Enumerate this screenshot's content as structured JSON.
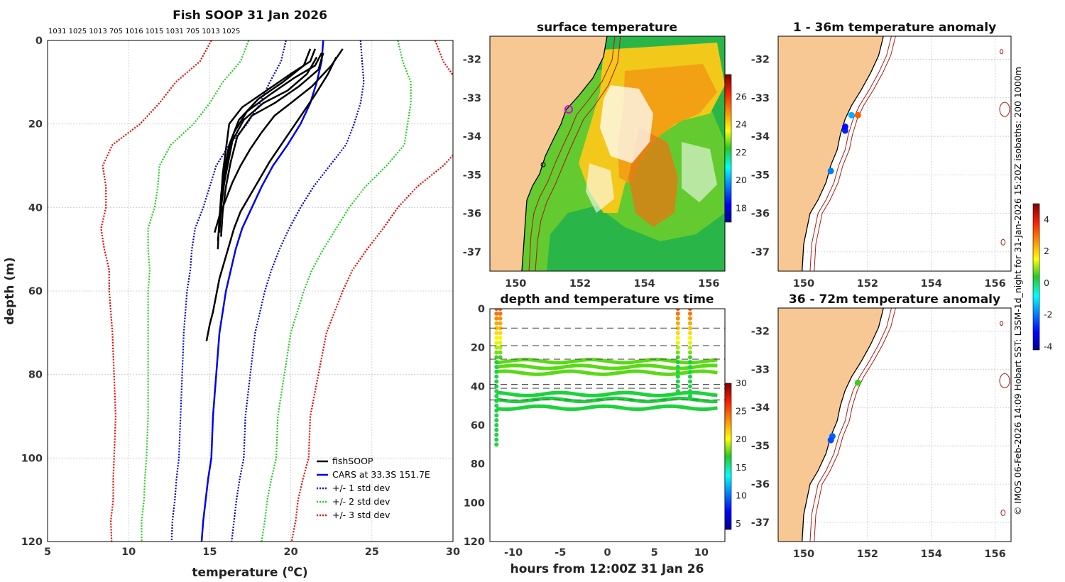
{
  "chart_data": [
    {
      "id": "profile",
      "type": "line",
      "title": "Fish SOOP 31 Jan 2026",
      "top_annotation": "1031 1025 1013 705 1016 1015 1031 705 1013 1025",
      "xlabel": "temperature (°C)",
      "xlabel_parts": [
        "temperature (",
        "o",
        "C)"
      ],
      "ylabel": "depth (m)",
      "xlim": [
        5,
        30
      ],
      "ylim": [
        120,
        0
      ],
      "xticks": [
        5,
        10,
        15,
        20,
        25,
        30
      ],
      "yticks": [
        0,
        20,
        40,
        60,
        80,
        100,
        120
      ],
      "grid": true,
      "legend_position": "bottom-right",
      "legend": [
        {
          "label": "fishSOOP",
          "color": "#000000",
          "style": "solid"
        },
        {
          "label": "CARS at 33.3S 151.7E",
          "color": "#0000ee",
          "style": "solid"
        },
        {
          "label": "+/- 1 std dev",
          "color": "#0000cc",
          "style": "dotted"
        },
        {
          "label": "+/- 2 std dev",
          "color": "#22cc22",
          "style": "dotted"
        },
        {
          "label": "+/- 3 std dev",
          "color": "#ee0000",
          "style": "dotted"
        }
      ],
      "cars_mean": [
        [
          22.0,
          0
        ],
        [
          21.9,
          5
        ],
        [
          21.6,
          10
        ],
        [
          21.2,
          15
        ],
        [
          20.6,
          20
        ],
        [
          19.8,
          25
        ],
        [
          18.9,
          30
        ],
        [
          18.2,
          35
        ],
        [
          17.6,
          40
        ],
        [
          17.0,
          45
        ],
        [
          16.6,
          50
        ],
        [
          16.3,
          55
        ],
        [
          16.0,
          60
        ],
        [
          15.8,
          65
        ],
        [
          15.6,
          70
        ],
        [
          15.5,
          75
        ],
        [
          15.4,
          80
        ],
        [
          15.3,
          85
        ],
        [
          15.2,
          90
        ],
        [
          15.15,
          95
        ],
        [
          15.1,
          100
        ],
        [
          14.9,
          105
        ],
        [
          14.75,
          110
        ],
        [
          14.6,
          115
        ],
        [
          14.5,
          120
        ]
      ],
      "std_offsets": [
        [
          2.3,
          2.5,
          2.9,
          3.1,
          3.3,
          3.6,
          3.5,
          3.2,
          3.0,
          2.9,
          2.7,
          2.5,
          2.4,
          2.3,
          2.2,
          2.15,
          2.1,
          2.05,
          2.0,
          2.0,
          2.0,
          1.95,
          1.9,
          1.9,
          1.85
        ]
      ],
      "profiles": [
        [
          [
            21.5,
            2
          ],
          [
            21.2,
            5
          ],
          [
            20.0,
            8
          ],
          [
            18.5,
            12
          ],
          [
            17.0,
            16
          ],
          [
            16.2,
            20
          ],
          [
            16.0,
            26
          ],
          [
            15.8,
            32
          ],
          [
            15.7,
            38
          ],
          [
            15.6,
            44
          ],
          [
            15.5,
            48
          ]
        ],
        [
          [
            21.9,
            3
          ],
          [
            21.5,
            6
          ],
          [
            20.2,
            9
          ],
          [
            18.7,
            13
          ],
          [
            17.3,
            17
          ],
          [
            16.5,
            22
          ],
          [
            16.1,
            28
          ],
          [
            15.9,
            34
          ],
          [
            15.7,
            40
          ],
          [
            15.6,
            46
          ]
        ],
        [
          [
            21.2,
            2
          ],
          [
            20.8,
            6
          ],
          [
            19.5,
            10
          ],
          [
            18.0,
            14
          ],
          [
            16.8,
            19
          ],
          [
            16.2,
            25
          ],
          [
            15.9,
            31
          ],
          [
            15.7,
            37
          ],
          [
            15.6,
            43
          ]
        ],
        [
          [
            22.0,
            3
          ],
          [
            21.7,
            7
          ],
          [
            20.5,
            11
          ],
          [
            19.0,
            15
          ],
          [
            17.6,
            18
          ],
          [
            16.7,
            23
          ],
          [
            16.3,
            29
          ],
          [
            16.0,
            35
          ],
          [
            15.8,
            41
          ],
          [
            15.7,
            47
          ]
        ],
        [
          [
            21.6,
            4
          ],
          [
            21.0,
            8
          ],
          [
            19.8,
            12
          ],
          [
            18.3,
            15
          ],
          [
            17.1,
            19
          ],
          [
            16.4,
            24
          ],
          [
            16.1,
            30
          ],
          [
            15.8,
            36
          ],
          [
            15.6,
            42
          ],
          [
            15.5,
            50
          ]
        ],
        [
          [
            23.2,
            2
          ],
          [
            22.5,
            6
          ],
          [
            21.3,
            11
          ],
          [
            20.0,
            15
          ],
          [
            19.0,
            18
          ],
          [
            18.2,
            22
          ],
          [
            17.5,
            26
          ],
          [
            16.9,
            30
          ],
          [
            16.4,
            34
          ],
          [
            16.0,
            38
          ],
          [
            15.6,
            42
          ],
          [
            15.3,
            46
          ]
        ],
        [
          [
            22.8,
            4
          ],
          [
            22.3,
            8
          ],
          [
            21.5,
            13
          ],
          [
            20.8,
            17
          ],
          [
            20.1,
            21
          ],
          [
            19.4,
            25
          ],
          [
            18.7,
            29
          ],
          [
            18.1,
            33
          ],
          [
            17.5,
            37
          ],
          [
            16.9,
            41
          ],
          [
            16.5,
            45
          ],
          [
            16.2,
            49
          ],
          [
            15.9,
            53
          ],
          [
            15.6,
            57
          ],
          [
            15.4,
            61
          ],
          [
            15.2,
            65
          ],
          [
            15.0,
            68
          ],
          [
            14.8,
            72
          ]
        ]
      ]
    },
    {
      "id": "surface_map",
      "type": "heatmap",
      "title": "surface temperature",
      "xlim": [
        149.2,
        156.5
      ],
      "ylim": [
        -37.5,
        -31.4
      ],
      "xticks": [
        150,
        152,
        154,
        156
      ],
      "yticks": [
        -32,
        -33,
        -34,
        -35,
        -36,
        -37
      ],
      "colorbar": {
        "min": 17,
        "max": 27.6,
        "ticks": [
          18,
          20,
          22,
          24,
          26
        ]
      }
    },
    {
      "id": "time_series",
      "type": "scatter",
      "title": "depth and temperature vs time",
      "xlabel": "hours from 12:00Z 31 Jan 26",
      "xlim": [
        -12.5,
        12.5
      ],
      "ylim": [
        120,
        0
      ],
      "xticks": [
        -10,
        -5,
        0,
        5,
        10
      ],
      "yticks": [
        0,
        20,
        40,
        60,
        80,
        100,
        120
      ],
      "dashed_depths": [
        10,
        19,
        26,
        39,
        41,
        47
      ],
      "track_depths": [
        27,
        30,
        33,
        44,
        47,
        51
      ],
      "colorbar": {
        "min": 4,
        "max": 30,
        "ticks": [
          5,
          10,
          15,
          20,
          25,
          30
        ]
      }
    },
    {
      "id": "anomaly_top",
      "type": "scatter",
      "title": "1 - 36m temperature anomaly",
      "xlim": [
        149.2,
        156.5
      ],
      "ylim": [
        -37.5,
        -31.4
      ],
      "xticks": [
        150,
        152,
        154,
        156
      ],
      "yticks": [
        -32,
        -33,
        -34,
        -35,
        -36,
        -37
      ],
      "points": [
        [
          151.5,
          -33.45,
          -1.5
        ],
        [
          151.7,
          -33.45,
          3.2
        ],
        [
          151.3,
          -33.85,
          -2.8
        ],
        [
          151.3,
          -33.75,
          -3.0
        ],
        [
          150.85,
          -34.9,
          -2.0
        ]
      ]
    },
    {
      "id": "anomaly_bottom",
      "type": "scatter",
      "title": "36 - 72m temperature anomaly",
      "xlim": [
        149.2,
        156.5
      ],
      "ylim": [
        -37.5,
        -31.4
      ],
      "xticks": [
        150,
        152,
        154,
        156
      ],
      "yticks": [
        -32,
        -33,
        -34,
        -35,
        -36,
        -37
      ],
      "points": [
        [
          151.7,
          -33.35,
          0.5
        ],
        [
          150.9,
          -34.75,
          -2.2
        ],
        [
          150.85,
          -34.85,
          -2.4
        ]
      ]
    },
    {
      "id": "anomaly_colorbar",
      "type": "colorbar",
      "min": -4.2,
      "max": 5.0,
      "ticks": [
        -4,
        -2,
        0,
        2,
        4
      ]
    }
  ],
  "side_text": "© IMOS 06-Feb-2026 14:09 Hobart SST: L3SM-1d_night for 31-Jan-2026 15:20Z isobaths: 200  1000m",
  "colors": {
    "land": "#f8c894",
    "grid": "#c8c8c8",
    "coast": "#000000",
    "isobath": "#aa1a10"
  }
}
